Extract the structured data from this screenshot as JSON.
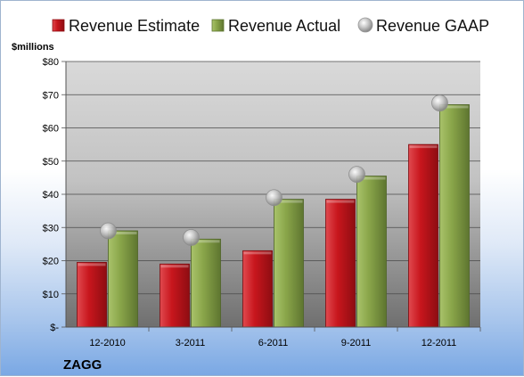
{
  "chart_data": {
    "type": "bar",
    "title": "",
    "unit_label": "$millions",
    "footer_label": "ZAGG",
    "categories": [
      "12-2010",
      "3-2011",
      "6-2011",
      "9-2011",
      "12-2011"
    ],
    "series": [
      {
        "name": "Revenue Estimate",
        "kind": "bar",
        "color": "#c8161d",
        "values": [
          19.5,
          19,
          23,
          38.5,
          55
        ]
      },
      {
        "name": "Revenue Actual",
        "kind": "bar",
        "color": "#8aa64a",
        "values": [
          29,
          26.5,
          38.5,
          45.5,
          67
        ]
      },
      {
        "name": "Revenue GAAP",
        "kind": "marker",
        "color": "#b8b8b8",
        "values": [
          29,
          27,
          39,
          46,
          67.5
        ]
      }
    ],
    "y_ticks": [
      0,
      10,
      20,
      30,
      40,
      50,
      60,
      70,
      80
    ],
    "y_tick_labels": [
      "$-",
      "$10",
      "$20",
      "$30",
      "$40",
      "$50",
      "$60",
      "$70",
      "$80"
    ],
    "ylim": [
      0,
      80
    ],
    "grid": true,
    "legend_position": "top"
  }
}
